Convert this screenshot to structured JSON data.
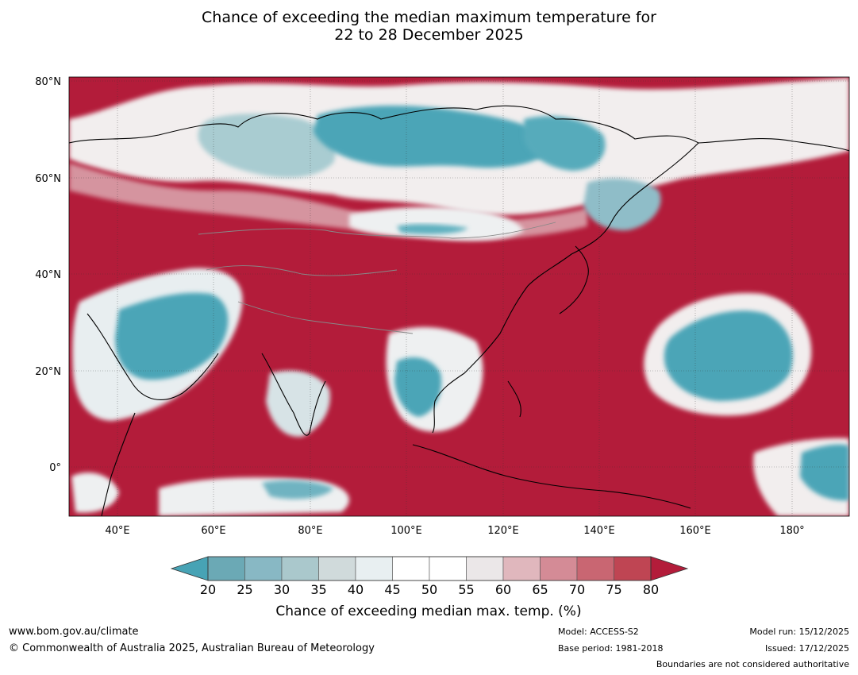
{
  "title": {
    "line1": "Chance of exceeding the median maximum temperature for",
    "line2": "22 to 28 December 2025"
  },
  "map": {
    "lat_labels": [
      "80°N",
      "60°N",
      "40°N",
      "20°N",
      "0°"
    ],
    "lon_labels": [
      "40°E",
      "60°E",
      "80°E",
      "100°E",
      "120°E",
      "140°E",
      "160°E",
      "180°"
    ],
    "lat_values": [
      80,
      60,
      40,
      20,
      0
    ],
    "lon_values": [
      40,
      60,
      80,
      100,
      120,
      140,
      160,
      180
    ],
    "extent": {
      "lon_min": 30,
      "lon_max": 192,
      "lat_min": -10,
      "lat_max": 81
    },
    "colors": {
      "high": "#b31c3a",
      "low": "#47a3b5",
      "neutral": "#ffffff"
    }
  },
  "colorbar": {
    "ticks": [
      "20",
      "25",
      "30",
      "35",
      "40",
      "45",
      "50",
      "55",
      "60",
      "65",
      "70",
      "75",
      "80"
    ],
    "colors": [
      "#6ba9b5",
      "#88b8c4",
      "#aac8cc",
      "#d0dadb",
      "#e8eff1",
      "#ffffff",
      "#ffffff",
      "#ebe7e8",
      "#e0b7bd",
      "#d48b96",
      "#c96672",
      "#bf4553"
    ],
    "under_color": "#47a3b5",
    "over_color": "#b31c3a",
    "label": "Chance of exceeding median max. temp. (%)"
  },
  "footer": {
    "website": "www.bom.gov.au/climate",
    "copyright": "© Commonwealth of Australia 2025, Australian Bureau of Meteorology",
    "model": "Model: ACCESS-S2",
    "base_period": "Base period: 1981-2018",
    "model_run": "Model run: 15/12/2025",
    "issued": "Issued: 17/12/2025",
    "disclaimer": "Boundaries are not considered authoritative"
  }
}
